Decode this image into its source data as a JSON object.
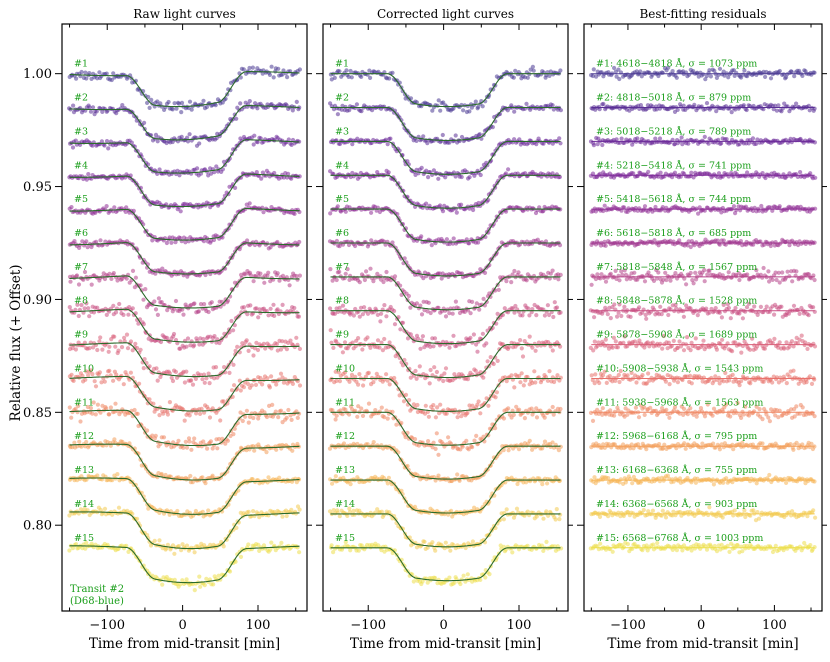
{
  "chart_data": {
    "type": "scatter",
    "figure_description_type": "multi-panel spectroscopic light curves",
    "ylabel": "Relative flux (+ Offset)",
    "xlabel": "Time from mid-transit [min]",
    "xlim": [
      -160,
      165
    ],
    "ylim": [
      0.762,
      1.022
    ],
    "xticks": [
      -100,
      0,
      100
    ],
    "xtick_labels": [
      "−100",
      "0",
      "100"
    ],
    "yticks": [
      0.8,
      0.85,
      0.9,
      0.95,
      1.0
    ],
    "ytick_labels": [
      "0.80",
      "0.85",
      "0.90",
      "0.95",
      "1.00"
    ],
    "transit": {
      "t1": -75,
      "t2": -35,
      "t3": 45,
      "t4": 85,
      "depth": 0.0135
    },
    "annotation": [
      "Transit #2",
      "(D68-blue)"
    ],
    "panels": [
      {
        "title": "Raw light curves",
        "kind": "raw"
      },
      {
        "title": "Corrected light curves",
        "kind": "corrected"
      },
      {
        "title": "Best-fitting residuals",
        "kind": "residuals"
      }
    ],
    "channels": [
      {
        "label": "#1",
        "residual_label": "#1: 4618−4818 Å, σ = 1073 ppm",
        "offset": 1.0,
        "rms_ppm": 1073,
        "color": "#4b3a93"
      },
      {
        "label": "#2",
        "residual_label": "#2: 4818−5018 Å, σ = 879 ppm",
        "offset": 0.985,
        "rms_ppm": 879,
        "color": "#5a2f96"
      },
      {
        "label": "#3",
        "residual_label": "#3: 5018−5218 Å, σ = 789 ppm",
        "offset": 0.97,
        "rms_ppm": 789,
        "color": "#6b2a99"
      },
      {
        "label": "#4",
        "residual_label": "#4: 5218−5418 Å, σ = 741 ppm",
        "offset": 0.955,
        "rms_ppm": 741,
        "color": "#7e2a99"
      },
      {
        "label": "#5",
        "residual_label": "#5: 5418−5618 Å, σ = 744 ppm",
        "offset": 0.94,
        "rms_ppm": 744,
        "color": "#8f2f96"
      },
      {
        "label": "#6",
        "residual_label": "#6: 5618−5818 Å, σ = 685 ppm",
        "offset": 0.925,
        "rms_ppm": 685,
        "color": "#a0378f"
      },
      {
        "label": "#7",
        "residual_label": "#7: 5818−5848 Å, σ = 1567 ppm",
        "offset": 0.91,
        "rms_ppm": 1567,
        "color": "#b54288"
      },
      {
        "label": "#8",
        "residual_label": "#8: 5848−5878 Å, σ = 1528 ppm",
        "offset": 0.895,
        "rms_ppm": 1528,
        "color": "#c94e82"
      },
      {
        "label": "#9",
        "residual_label": "#9: 5878−5908 Å, σ = 1689 ppm",
        "offset": 0.88,
        "rms_ppm": 1689,
        "color": "#d95f78"
      },
      {
        "label": "#10",
        "residual_label": "#10: 5908−5938 Å, σ = 1543 ppm",
        "offset": 0.865,
        "rms_ppm": 1543,
        "color": "#e8726c"
      },
      {
        "label": "#11",
        "residual_label": "#11: 5938−5968 Å, σ = 1563 ppm",
        "offset": 0.85,
        "rms_ppm": 1563,
        "color": "#ef8763"
      },
      {
        "label": "#12",
        "residual_label": "#12: 5968−6168 Å, σ = 795 ppm",
        "offset": 0.835,
        "rms_ppm": 795,
        "color": "#f39f5b"
      },
      {
        "label": "#13",
        "residual_label": "#13: 6168−6368 Å, σ = 755 ppm",
        "offset": 0.82,
        "rms_ppm": 755,
        "color": "#f5b555"
      },
      {
        "label": "#14",
        "residual_label": "#14: 6368−6568 Å, σ = 903 ppm",
        "offset": 0.805,
        "rms_ppm": 903,
        "color": "#f3ca50"
      },
      {
        "label": "#15",
        "residual_label": "#15: 6568−6768 Å, σ = 1003 ppm",
        "offset": 0.79,
        "rms_ppm": 1003,
        "color": "#ecdf4c"
      }
    ]
  }
}
